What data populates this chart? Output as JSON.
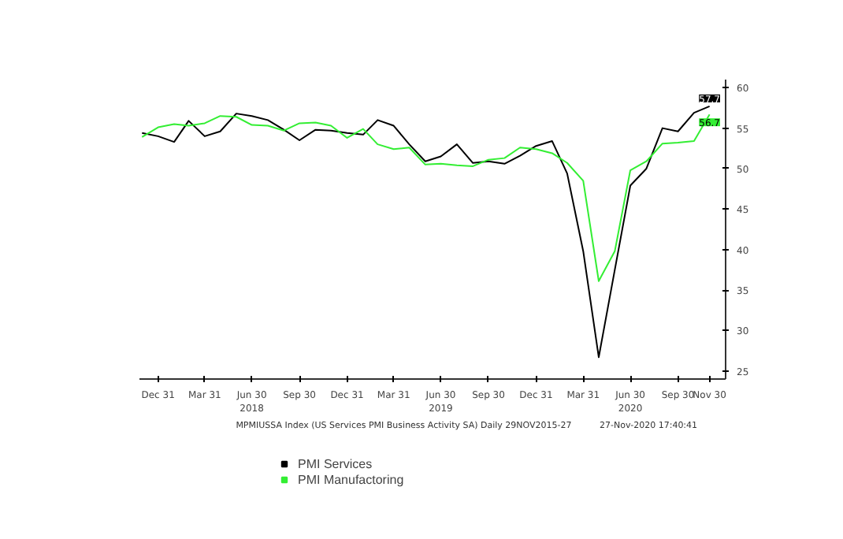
{
  "chart_data": {
    "type": "line",
    "x": [
      "2017-11-30",
      "2017-12-31",
      "2018-01-31",
      "2018-02-28",
      "2018-03-31",
      "2018-04-30",
      "2018-05-31",
      "2018-06-30",
      "2018-07-31",
      "2018-08-31",
      "2018-09-30",
      "2018-10-31",
      "2018-11-30",
      "2018-12-31",
      "2019-01-31",
      "2019-02-28",
      "2019-03-31",
      "2019-04-30",
      "2019-05-31",
      "2019-06-30",
      "2019-07-31",
      "2019-08-31",
      "2019-09-30",
      "2019-10-31",
      "2019-11-30",
      "2019-12-31",
      "2020-01-31",
      "2020-02-29",
      "2020-03-31",
      "2020-04-30",
      "2020-05-31",
      "2020-06-30",
      "2020-07-31",
      "2020-08-31",
      "2020-09-30",
      "2020-10-31",
      "2020-11-30"
    ],
    "series": [
      {
        "name": "PMI Services",
        "color": "#000000",
        "values": [
          54.4,
          54.0,
          53.3,
          55.9,
          54.0,
          54.6,
          56.8,
          56.5,
          56.0,
          54.8,
          53.5,
          54.8,
          54.7,
          54.4,
          54.2,
          56.0,
          55.3,
          53.0,
          50.9,
          51.5,
          53.0,
          50.7,
          50.9,
          50.6,
          51.6,
          52.8,
          53.4,
          49.4,
          39.8,
          26.7,
          37.5,
          47.9,
          50.0,
          55.0,
          54.6,
          56.9,
          57.7
        ]
      },
      {
        "name": "PMI Manufactoring",
        "color": "#33ee33",
        "values": [
          53.9,
          55.1,
          55.5,
          55.3,
          55.6,
          56.5,
          56.4,
          55.4,
          55.3,
          54.7,
          55.6,
          55.7,
          55.3,
          53.8,
          54.9,
          53.0,
          52.4,
          52.6,
          50.5,
          50.6,
          50.4,
          50.3,
          51.1,
          51.3,
          52.6,
          52.4,
          51.9,
          50.7,
          48.5,
          36.1,
          39.8,
          49.8,
          50.9,
          53.1,
          53.2,
          53.4,
          56.7
        ]
      }
    ],
    "xlim": [
      "2017-11-25",
      "2020-12-31"
    ],
    "xticks": [
      {
        "value": "2017-12-31",
        "label": "Dec 31"
      },
      {
        "value": "2018-03-31",
        "label": "Mar 31"
      },
      {
        "value": "2018-06-30",
        "label": "Jun 30\n2018"
      },
      {
        "value": "2018-09-30",
        "label": "Sep 30"
      },
      {
        "value": "2018-12-31",
        "label": "Dec 31"
      },
      {
        "value": "2019-03-31",
        "label": "Mar 31"
      },
      {
        "value": "2019-06-30",
        "label": "Jun 30\n2019"
      },
      {
        "value": "2019-09-30",
        "label": "Sep 30"
      },
      {
        "value": "2019-12-31",
        "label": "Dec 31"
      },
      {
        "value": "2020-03-31",
        "label": "Mar 31"
      },
      {
        "value": "2020-06-30",
        "label": "Jun 30\n2020"
      },
      {
        "value": "2020-09-30",
        "label": "Sep 30"
      },
      {
        "value": "2020-11-30",
        "label": "Nov 30"
      }
    ],
    "ylim": [
      24,
      61
    ],
    "yticks": [
      25,
      30,
      35,
      40,
      45,
      50,
      55,
      60
    ],
    "grid": false,
    "legend": "bottom left",
    "annotations": [
      "MPMIUSSA Index (US Services PMI Business Activity SA)  Daily 29NOV2015-27",
      "27-Nov-2020 17:40:41",
      {
        "text": "57.7",
        "x": "2020-11-30",
        "y": 57.7
      },
      {
        "text": "56.7",
        "x": "2020-11-30",
        "y": 56.7
      }
    ]
  }
}
